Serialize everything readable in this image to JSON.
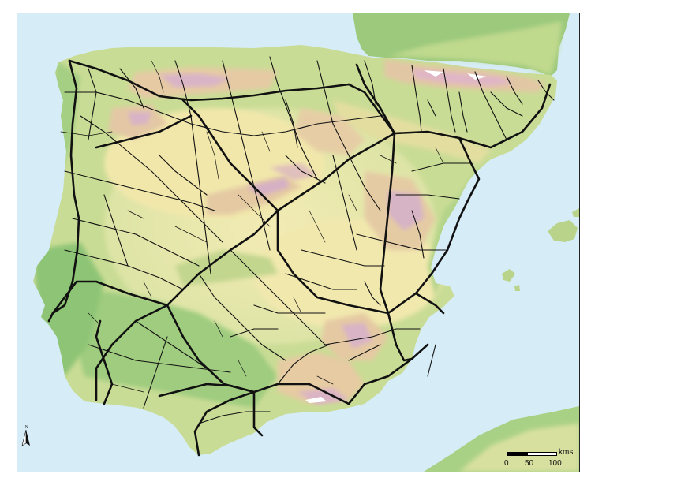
{
  "map": {
    "colors": {
      "sea": "#d6ecf7",
      "lowland": "#86bf72",
      "plain": "#c9dc95",
      "plateau": "#f1e9ad",
      "hills": "#e9cf99",
      "mountain": "#d8b4c8",
      "peak": "#ffffff",
      "road": "#111111"
    },
    "north_arrow": {
      "label": "N",
      "icon": "north-arrow-icon"
    },
    "scalebar": {
      "unit": "kms",
      "ticks": [
        "0",
        "50",
        "100"
      ]
    }
  }
}
